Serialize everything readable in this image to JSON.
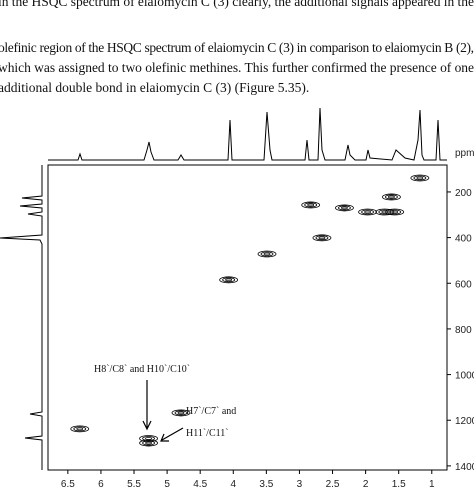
{
  "text": {
    "lines": [
      "in the HSQC spectrum of elaiomycin C (3) clearly, the additional signals appeared in the",
      "olefinic region of the HSQC spectrum of elaiomycin C (3) in comparison to elaiomycin B (2),",
      "which was assigned to two olefinic methines. This further confirmed the presence of one",
      "additional double bond in elaiomycin C (3) (Figure 5.35)."
    ]
  },
  "chart_data": {
    "type": "contour",
    "y_unit": "ppm",
    "x": [
      6.32,
      5.28,
      5.28,
      4.79,
      4.07,
      3.49,
      2.66,
      2.83,
      2.32,
      1.97,
      1.61,
      1.71,
      1.56,
      1.18
    ],
    "y": [
      1238,
      1280,
      1300,
      1168,
      585,
      472,
      401,
      257,
      270,
      288,
      222,
      288,
      288,
      139
    ],
    "xlim": [
      6.8,
      0.77
    ],
    "ylim": [
      82,
      1418
    ],
    "xticks": [
      6.5,
      6.0,
      5.5,
      5.0,
      4.5,
      4.0,
      3.5,
      3.0,
      2.5,
      2.0,
      1.5,
      1.0
    ],
    "yticks": [
      200,
      400,
      600,
      800,
      1000,
      1200,
      1400
    ],
    "annotations": [
      "H8`/C8` and H10`/C10`",
      "H7`/C7`    and",
      "H11`/C11`"
    ]
  }
}
